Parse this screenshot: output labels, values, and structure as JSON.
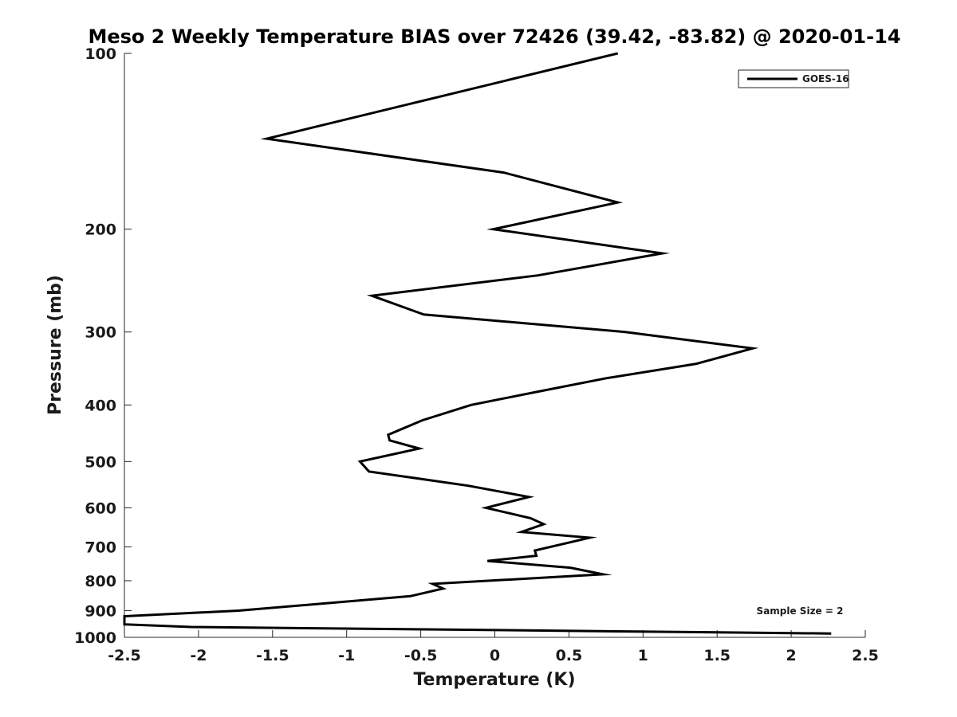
{
  "chart_data": {
    "type": "line",
    "title": "Meso 2 Weekly Temperature BIAS over 72426 (39.42, -83.82) @ 2020-01-14",
    "xlabel": "Temperature (K)",
    "ylabel": "Pressure (mb)",
    "xlim": [
      -2.5,
      2.5
    ],
    "ylim": [
      100,
      1000
    ],
    "y_scale": "log",
    "y_reversed": true,
    "x_ticks": [
      -2.5,
      -2,
      -1.5,
      -1,
      -0.5,
      0,
      0.5,
      1,
      1.5,
      2,
      2.5
    ],
    "x_tick_labels": [
      "-2.5",
      "-2",
      "-1.5",
      "-1",
      "-0.5",
      "0",
      "0.5",
      "1",
      "1.5",
      "2",
      "2.5"
    ],
    "y_ticks": [
      100,
      200,
      300,
      400,
      500,
      600,
      700,
      800,
      900,
      1000
    ],
    "y_tick_labels": [
      "100",
      "200",
      "300",
      "400",
      "500",
      "600",
      "700",
      "800",
      "900",
      "1000"
    ],
    "grid": false,
    "legend_position": "top-right",
    "annotation": "Sample Size = 2",
    "series": [
      {
        "name": "GOES-16",
        "color": "#000000",
        "points": [
          {
            "x": 0.83,
            "y": 100
          },
          {
            "x": -1.54,
            "y": 140
          },
          {
            "x": 0.06,
            "y": 160
          },
          {
            "x": 0.83,
            "y": 180
          },
          {
            "x": -0.01,
            "y": 200
          },
          {
            "x": 1.13,
            "y": 220
          },
          {
            "x": 0.29,
            "y": 240
          },
          {
            "x": -0.83,
            "y": 260
          },
          {
            "x": -0.48,
            "y": 280
          },
          {
            "x": 0.88,
            "y": 300
          },
          {
            "x": 1.74,
            "y": 320
          },
          {
            "x": 1.36,
            "y": 340
          },
          {
            "x": 0.75,
            "y": 360
          },
          {
            "x": 0.28,
            "y": 380
          },
          {
            "x": -0.16,
            "y": 400
          },
          {
            "x": -0.49,
            "y": 425
          },
          {
            "x": -0.72,
            "y": 450
          },
          {
            "x": -0.71,
            "y": 460
          },
          {
            "x": -0.51,
            "y": 475
          },
          {
            "x": -0.91,
            "y": 500
          },
          {
            "x": -0.85,
            "y": 520
          },
          {
            "x": -0.18,
            "y": 550
          },
          {
            "x": 0.23,
            "y": 575
          },
          {
            "x": -0.06,
            "y": 600
          },
          {
            "x": 0.24,
            "y": 625
          },
          {
            "x": 0.33,
            "y": 640
          },
          {
            "x": 0.18,
            "y": 660
          },
          {
            "x": 0.64,
            "y": 675
          },
          {
            "x": 0.48,
            "y": 690
          },
          {
            "x": 0.27,
            "y": 710
          },
          {
            "x": 0.28,
            "y": 725
          },
          {
            "x": -0.05,
            "y": 740
          },
          {
            "x": 0.51,
            "y": 760
          },
          {
            "x": 0.73,
            "y": 780
          },
          {
            "x": -0.42,
            "y": 810
          },
          {
            "x": -0.35,
            "y": 825
          },
          {
            "x": -0.57,
            "y": 850
          },
          {
            "x": -1.73,
            "y": 900
          },
          {
            "x": -2.5,
            "y": 920
          },
          {
            "x": -2.5,
            "y": 950
          },
          {
            "x": -2.05,
            "y": 960
          },
          {
            "x": 2.27,
            "y": 985
          }
        ]
      }
    ]
  }
}
